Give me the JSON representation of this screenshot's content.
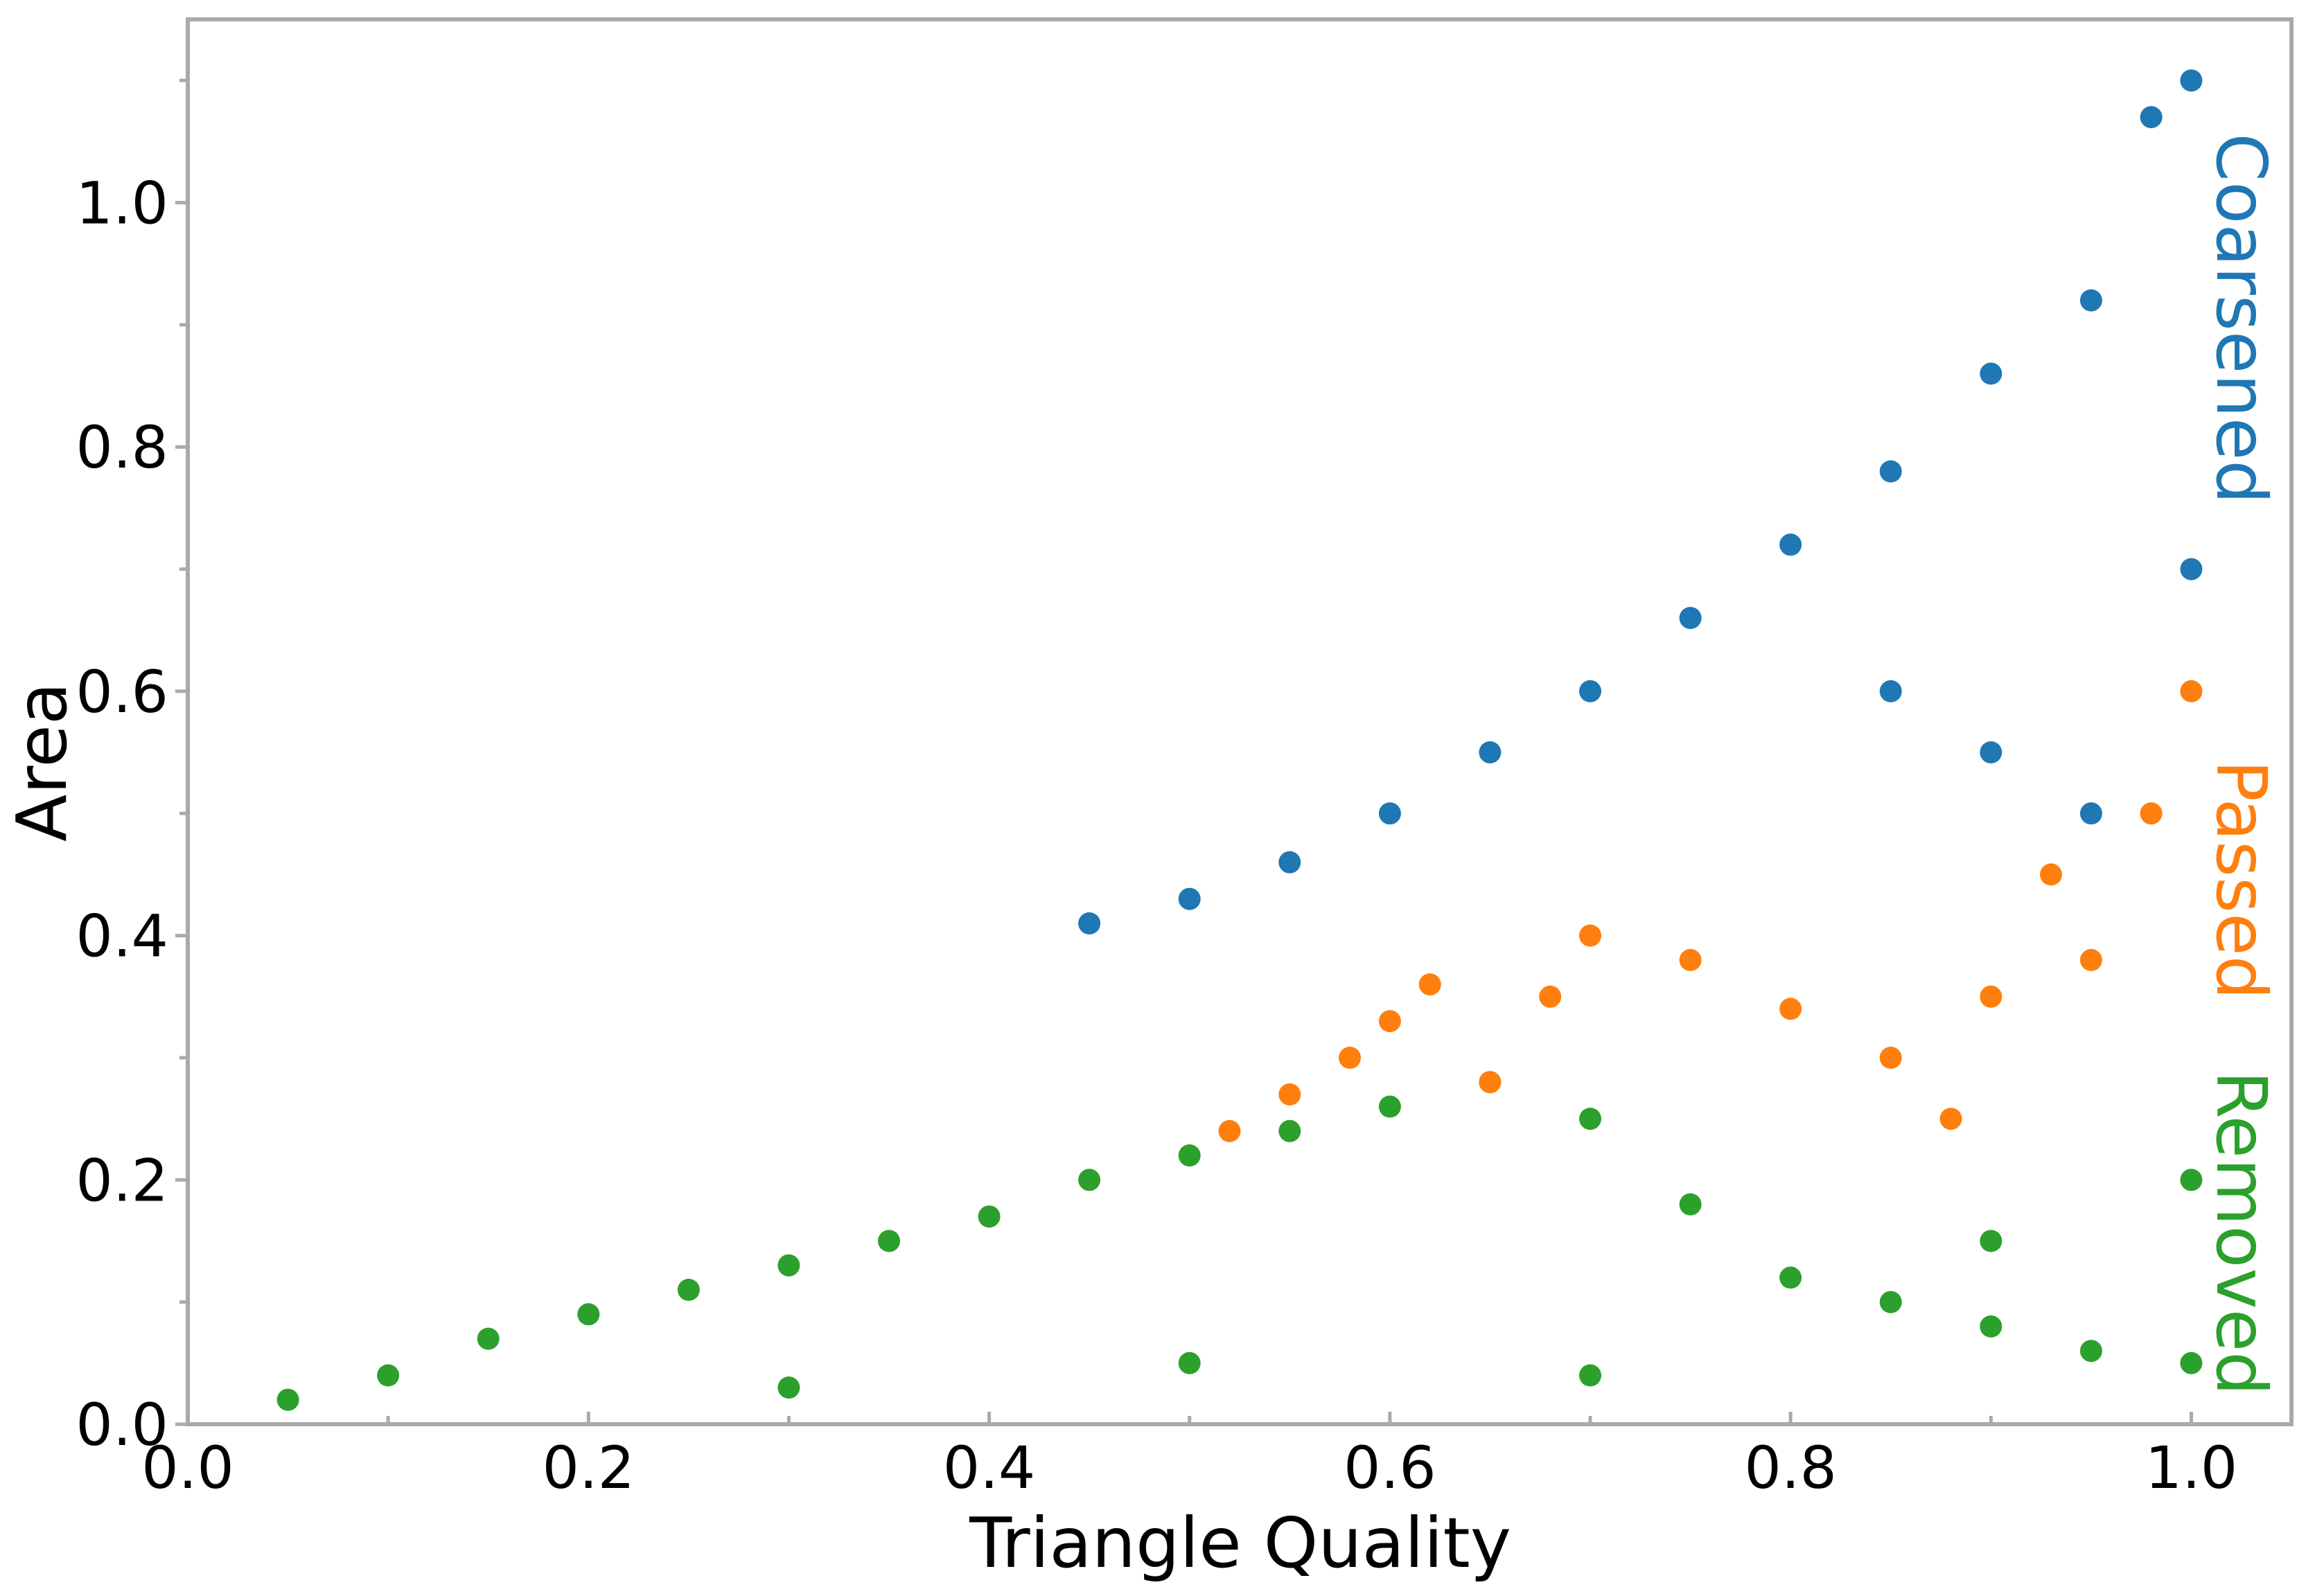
{
  "chart_data": {
    "type": "scatter",
    "title": "",
    "xlabel": "Triangle Quality",
    "ylabel": "Area",
    "xlim": [
      0.0,
      1.05
    ],
    "ylim": [
      0.0,
      1.15
    ],
    "xticks": [
      "0.0",
      "0.2",
      "0.4",
      "0.6",
      "0.8",
      "1.0"
    ],
    "yticks": [
      "0.0",
      "0.2",
      "0.4",
      "0.6",
      "0.8",
      "1.0"
    ],
    "x_tick_values": [
      0.0,
      0.2,
      0.4,
      0.6,
      0.8,
      1.0
    ],
    "y_tick_values": [
      0.0,
      0.2,
      0.4,
      0.6,
      0.8,
      1.0
    ],
    "grid": false,
    "legend": "labels printed vertically along the right edge",
    "series": [
      {
        "name": "Removed",
        "color": "#2ca02c",
        "points": [
          [
            0.05,
            0.02
          ],
          [
            0.1,
            0.04
          ],
          [
            0.15,
            0.07
          ],
          [
            0.2,
            0.09
          ],
          [
            0.25,
            0.11
          ],
          [
            0.3,
            0.13
          ],
          [
            0.35,
            0.15
          ],
          [
            0.4,
            0.17
          ],
          [
            0.45,
            0.2
          ],
          [
            0.5,
            0.22
          ],
          [
            0.55,
            0.24
          ],
          [
            0.6,
            0.26
          ],
          [
            0.65,
            0.28
          ],
          [
            0.7,
            0.25
          ],
          [
            0.75,
            0.18
          ],
          [
            0.8,
            0.12
          ],
          [
            0.85,
            0.1
          ],
          [
            0.9,
            0.08
          ],
          [
            0.95,
            0.06
          ],
          [
            1.0,
            0.05
          ],
          [
            0.3,
            0.03
          ],
          [
            0.5,
            0.05
          ],
          [
            0.7,
            0.04
          ],
          [
            0.9,
            0.15
          ],
          [
            1.0,
            0.2
          ]
        ]
      },
      {
        "name": "Passed",
        "color": "#ff7f0e",
        "points": [
          [
            0.52,
            0.24
          ],
          [
            0.55,
            0.27
          ],
          [
            0.58,
            0.3
          ],
          [
            0.6,
            0.33
          ],
          [
            0.62,
            0.36
          ],
          [
            0.65,
            0.28
          ],
          [
            0.68,
            0.35
          ],
          [
            0.7,
            0.4
          ],
          [
            0.75,
            0.38
          ],
          [
            0.8,
            0.34
          ],
          [
            0.85,
            0.3
          ],
          [
            0.88,
            0.25
          ],
          [
            0.9,
            0.35
          ],
          [
            0.93,
            0.45
          ],
          [
            0.95,
            0.38
          ],
          [
            0.98,
            0.5
          ],
          [
            1.0,
            0.6
          ]
        ]
      },
      {
        "name": "Coarsened",
        "color": "#1f77b4",
        "points": [
          [
            0.45,
            0.41
          ],
          [
            0.5,
            0.43
          ],
          [
            0.55,
            0.46
          ],
          [
            0.6,
            0.5
          ],
          [
            0.65,
            0.55
          ],
          [
            0.7,
            0.6
          ],
          [
            0.75,
            0.66
          ],
          [
            0.8,
            0.72
          ],
          [
            0.85,
            0.78
          ],
          [
            0.9,
            0.86
          ],
          [
            0.95,
            0.92
          ],
          [
            0.98,
            1.07
          ],
          [
            1.0,
            1.1
          ],
          [
            0.85,
            0.6
          ],
          [
            0.9,
            0.55
          ],
          [
            0.95,
            0.5
          ],
          [
            1.0,
            0.7
          ]
        ]
      }
    ]
  }
}
